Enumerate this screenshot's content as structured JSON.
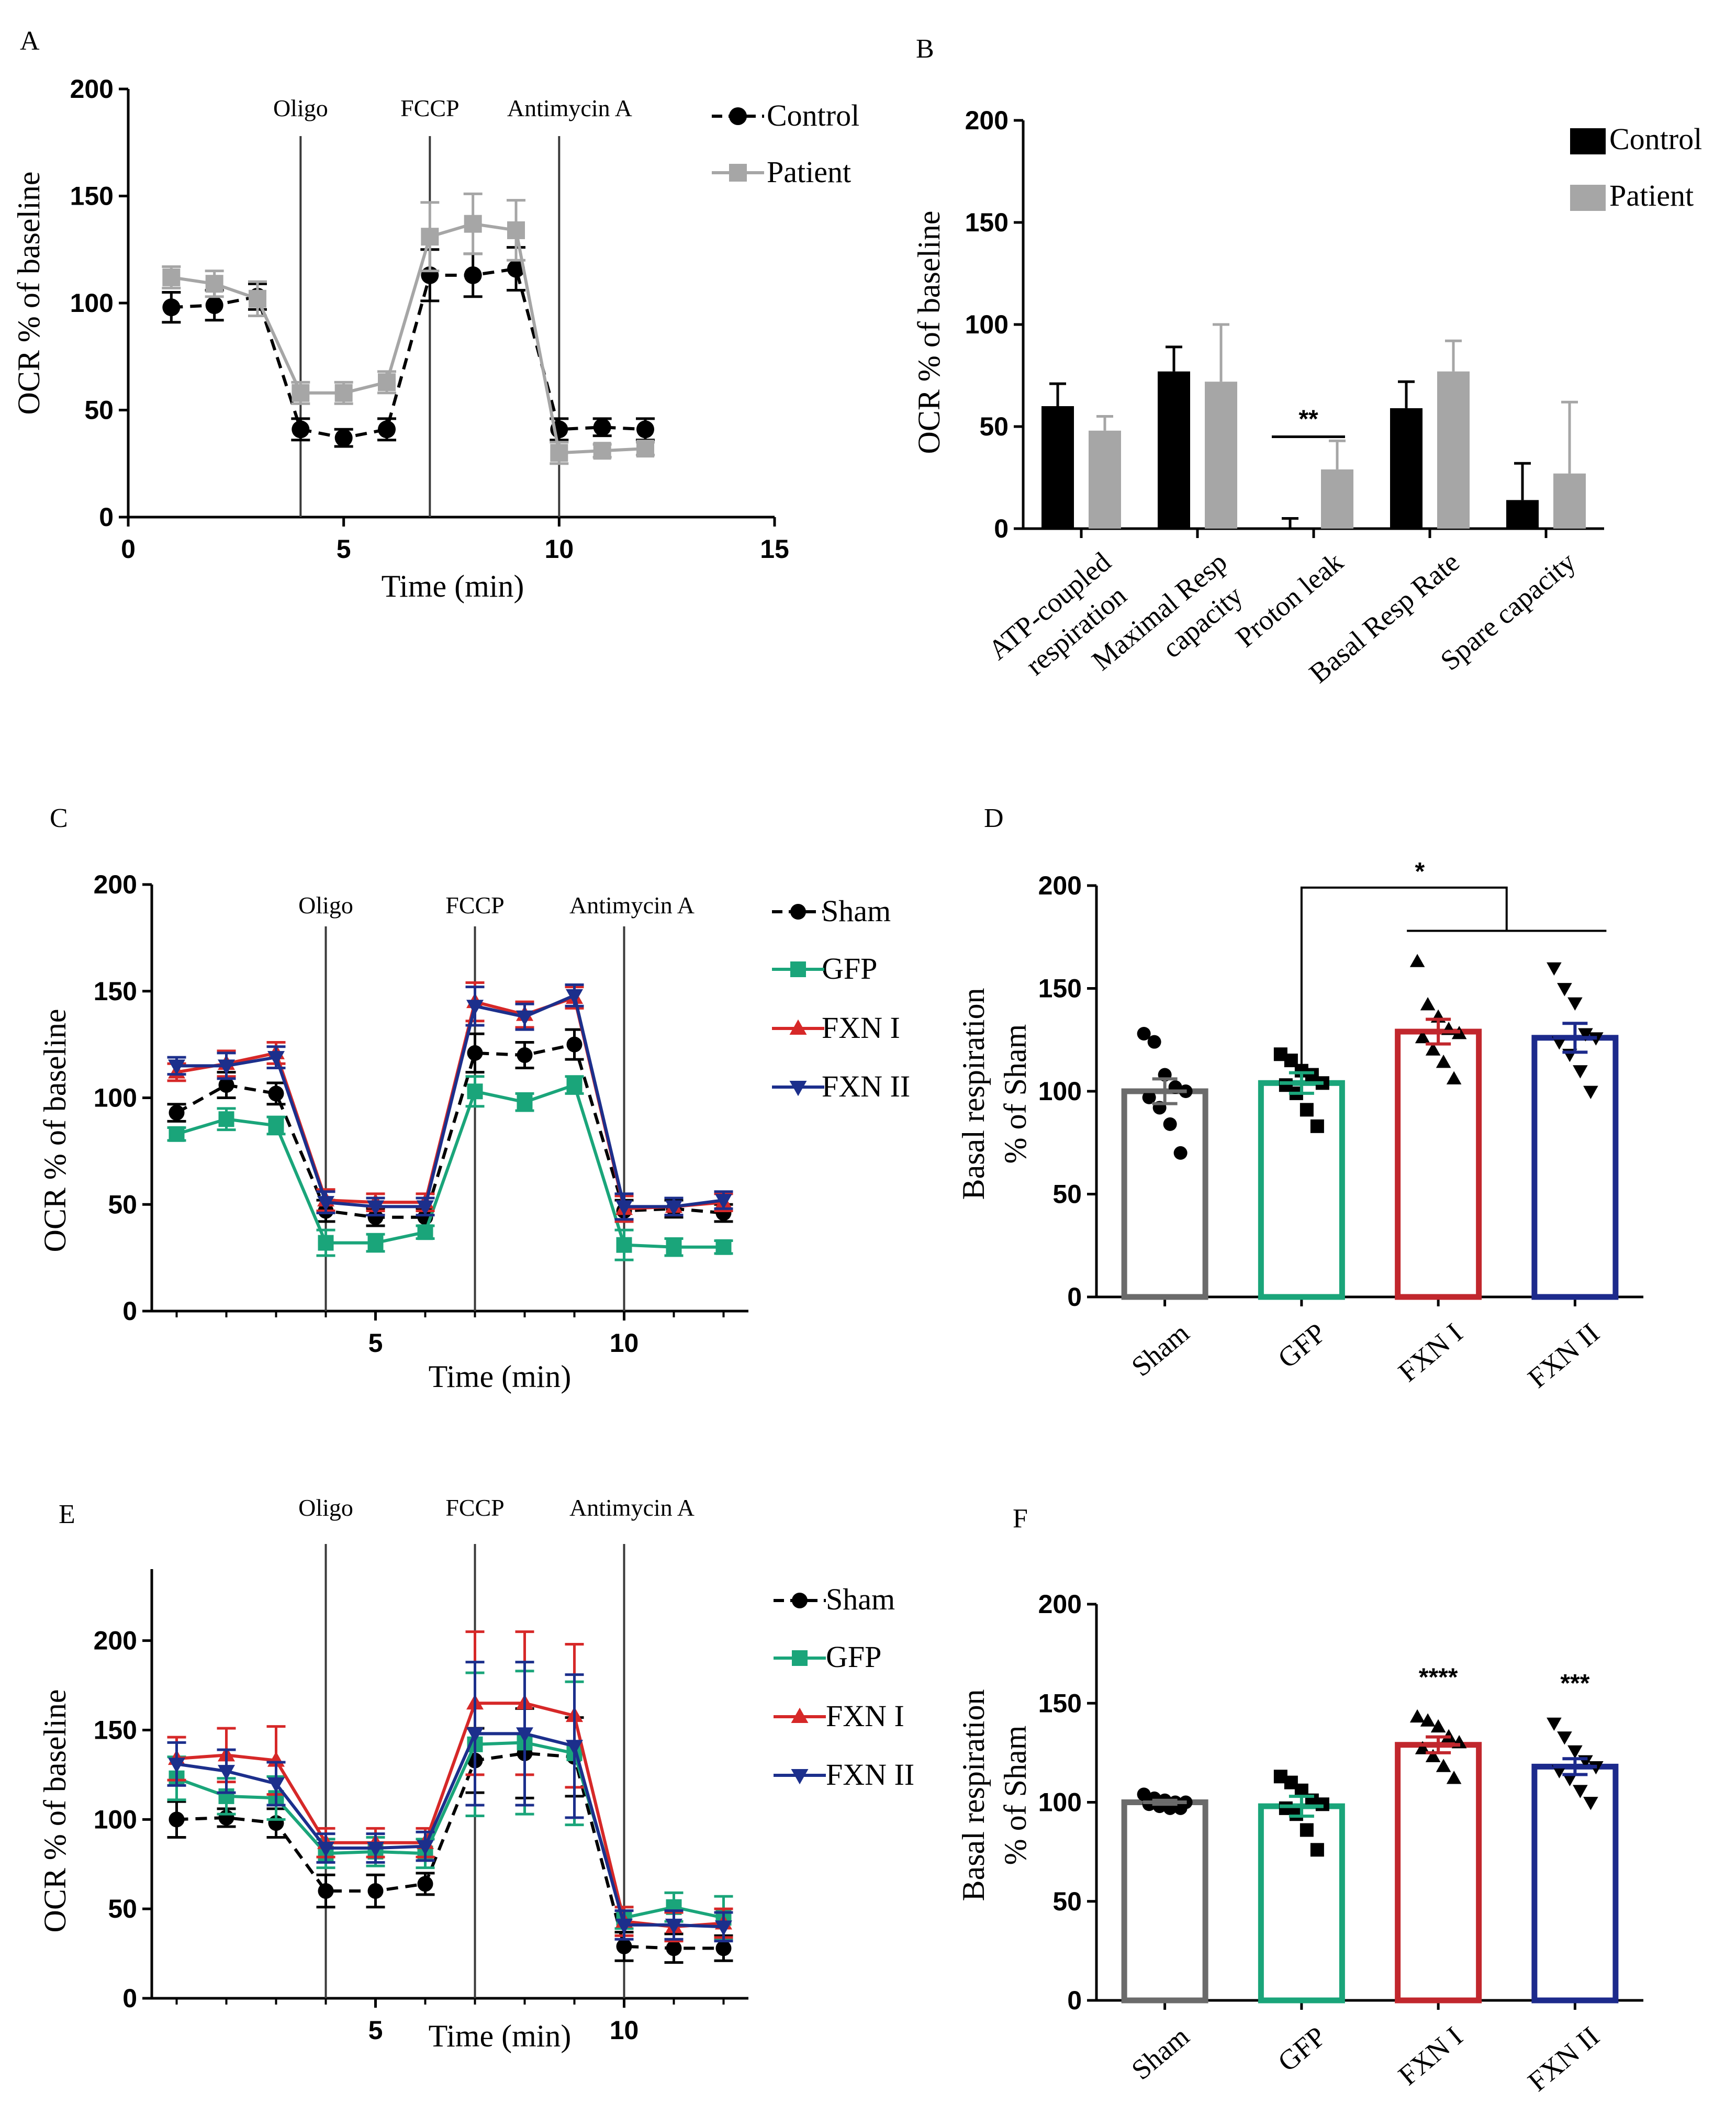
{
  "panel_labels": [
    "A",
    "B",
    "C",
    "D",
    "E",
    "F"
  ],
  "colors": {
    "control": "#000000",
    "patient": "#a6a6a6",
    "sham": "#000000",
    "gfp": "#1aa57a",
    "fxn1": "#d62828",
    "fxn2": "#1c2f8c",
    "bar_sham": "#6b6b6b",
    "bar_gfp": "#1aa57a",
    "bar_fxn1": "#c1272d",
    "bar_fxn2": "#1c2a8c"
  },
  "chart_data": [
    {
      "panel": "A",
      "type": "line",
      "title": "",
      "xlabel": "Time (min)",
      "ylabel": "OCR % of baseline",
      "xlim": [
        0,
        15
      ],
      "ylim": [
        0,
        200
      ],
      "xticks": [
        "0",
        "5",
        "10",
        "15"
      ],
      "yticks": [
        "0",
        "50",
        "100",
        "150",
        "200"
      ],
      "injections": [
        {
          "label": "Oligo",
          "x": 4
        },
        {
          "label": "FCCP",
          "x": 7
        },
        {
          "label": "Antimycin A",
          "x": 10
        }
      ],
      "x": [
        1,
        2,
        3,
        4,
        5,
        6,
        7,
        8,
        9,
        10,
        11,
        12
      ],
      "series": [
        {
          "name": "Control",
          "marker": "circle",
          "dash": true,
          "values": [
            98,
            99,
            103,
            41,
            37,
            41,
            113,
            113,
            116,
            41,
            42,
            41
          ],
          "errors": [
            7,
            7,
            6,
            5,
            4,
            5,
            12,
            10,
            10,
            5,
            4,
            5
          ]
        },
        {
          "name": "Patient",
          "marker": "square",
          "dash": false,
          "values": [
            112,
            109,
            102,
            58,
            58,
            63,
            131,
            137,
            134,
            30,
            31,
            32
          ],
          "errors": [
            5,
            6,
            8,
            5,
            5,
            5,
            16,
            14,
            14,
            5,
            3,
            3
          ]
        }
      ]
    },
    {
      "panel": "B",
      "type": "bar",
      "title": "",
      "xlabel": "",
      "ylabel": "OCR % of baseline",
      "ylim": [
        0,
        200
      ],
      "yticks": [
        "0",
        "50",
        "100",
        "150",
        "200"
      ],
      "categories": [
        "ATP-coupled respiration",
        "Maximal Resp capacity",
        "Proton leak",
        "Basal Resp Rate",
        "Spare capacity"
      ],
      "category_lines": [
        [
          "ATP-coupled",
          "respiration"
        ],
        [
          "Maximal Resp",
          "capacity"
        ],
        [
          "Proton leak"
        ],
        [
          "Basal Resp Rate"
        ],
        [
          "Spare capacity"
        ]
      ],
      "series": [
        {
          "name": "Control",
          "values": [
            60,
            77,
            0,
            59,
            14
          ],
          "errors": [
            11,
            12,
            5,
            13,
            18
          ]
        },
        {
          "name": "Patient",
          "values": [
            48,
            72,
            29,
            77,
            27
          ],
          "errors": [
            7,
            28,
            14,
            15,
            35
          ]
        }
      ],
      "annotations": [
        {
          "text": "**",
          "category": "Proton leak"
        }
      ]
    },
    {
      "panel": "C",
      "type": "line",
      "title": "",
      "xlabel": "Time (min)",
      "ylabel": "OCR % of baseline",
      "xlim": [
        0.5,
        12.5
      ],
      "ylim": [
        0,
        200
      ],
      "xticks": [
        "5",
        "10"
      ],
      "yticks": [
        "0",
        "50",
        "100",
        "150",
        "200"
      ],
      "injections": [
        {
          "label": "Oligo",
          "x": 4
        },
        {
          "label": "FCCP",
          "x": 7
        },
        {
          "label": "Antimycin A",
          "x": 10
        }
      ],
      "x": [
        1,
        2,
        3,
        4,
        5,
        6,
        7,
        8,
        9,
        10,
        11,
        12
      ],
      "series": [
        {
          "name": "Sham",
          "marker": "circle",
          "dash": true,
          "values": [
            93,
            106,
            102,
            47,
            44,
            44,
            121,
            120,
            125,
            47,
            48,
            46
          ],
          "errors": [
            4,
            6,
            5,
            5,
            4,
            4,
            9,
            6,
            7,
            5,
            4,
            4
          ]
        },
        {
          "name": "GFP",
          "marker": "square",
          "dash": false,
          "values": [
            83,
            90,
            87,
            32,
            32,
            37,
            103,
            98,
            106,
            31,
            30,
            30
          ],
          "errors": [
            3,
            5,
            4,
            6,
            4,
            3,
            7,
            4,
            4,
            7,
            4,
            3
          ]
        },
        {
          "name": "FXN I",
          "marker": "triangle-up",
          "dash": false,
          "values": [
            112,
            116,
            121,
            52,
            51,
            51,
            145,
            139,
            147,
            48,
            49,
            51
          ],
          "errors": [
            4,
            6,
            5,
            5,
            4,
            4,
            9,
            6,
            5,
            6,
            4,
            4
          ]
        },
        {
          "name": "FXN II",
          "marker": "triangle-down",
          "dash": false,
          "values": [
            115,
            115,
            119,
            51,
            49,
            49,
            143,
            138,
            148,
            49,
            49,
            52
          ],
          "errors": [
            4,
            6,
            5,
            5,
            4,
            4,
            9,
            6,
            5,
            6,
            4,
            4
          ]
        }
      ]
    },
    {
      "panel": "D",
      "type": "bar",
      "title": "",
      "xlabel": "",
      "ylabel": "Basal respiration % of Sham",
      "ylabel_lines": [
        "Basal respiration",
        "% of Sham"
      ],
      "ylim": [
        0,
        200
      ],
      "yticks": [
        "0",
        "50",
        "100",
        "150",
        "200"
      ],
      "categories": [
        "Sham",
        "GFP",
        "FXN I",
        "FXN II"
      ],
      "values": [
        100,
        104,
        129,
        126
      ],
      "errors": [
        6,
        5,
        6,
        7
      ],
      "points": [
        [
          128,
          124,
          108,
          102,
          100,
          97,
          92,
          84,
          70
        ],
        [
          118,
          115,
          110,
          108,
          104,
          103,
          99,
          91,
          83
        ],
        [
          163,
          142,
          136,
          130,
          128,
          126,
          120,
          114,
          106
        ],
        [
          160,
          150,
          143,
          128,
          126,
          124,
          118,
          110,
          100
        ]
      ],
      "markers": [
        "circle",
        "square",
        "triangle-up",
        "triangle-down"
      ],
      "annotations": [
        {
          "text": "*",
          "from": "GFP",
          "to": [
            "FXN I",
            "FXN II"
          ]
        }
      ]
    },
    {
      "panel": "E",
      "type": "line",
      "title": "",
      "xlabel": "Time (min)",
      "ylabel": "OCR % of baseline",
      "xlim": [
        0.5,
        12.5
      ],
      "ylim": [
        0,
        240
      ],
      "xticks": [
        "5",
        "10"
      ],
      "yticks": [
        "0",
        "50",
        "100",
        "150",
        "200"
      ],
      "injections": [
        {
          "label": "Oligo",
          "x": 4
        },
        {
          "label": "FCCP",
          "x": 7
        },
        {
          "label": "Antimycin A",
          "x": 10
        }
      ],
      "x": [
        1,
        2,
        3,
        4,
        5,
        6,
        7,
        8,
        9,
        10,
        11,
        12
      ],
      "series": [
        {
          "name": "Sham",
          "marker": "circle",
          "dash": true,
          "values": [
            100,
            101,
            98,
            60,
            60,
            64,
            133,
            137,
            135,
            29,
            28,
            28
          ],
          "errors": [
            10,
            5,
            8,
            9,
            9,
            6,
            18,
            25,
            22,
            8,
            8,
            7
          ]
        },
        {
          "name": "GFP",
          "marker": "square",
          "dash": false,
          "values": [
            123,
            113,
            112,
            81,
            82,
            81,
            142,
            143,
            137,
            45,
            51,
            45
          ],
          "errors": [
            12,
            10,
            12,
            8,
            8,
            8,
            40,
            40,
            40,
            6,
            8,
            12
          ]
        },
        {
          "name": "FXN I",
          "marker": "triangle-up",
          "dash": false,
          "values": [
            134,
            136,
            133,
            87,
            87,
            87,
            165,
            165,
            158,
            43,
            40,
            42
          ],
          "errors": [
            12,
            15,
            19,
            8,
            8,
            8,
            40,
            40,
            40,
            8,
            8,
            8
          ]
        },
        {
          "name": "FXN II",
          "marker": "triangle-down",
          "dash": false,
          "values": [
            131,
            127,
            120,
            84,
            84,
            85,
            148,
            148,
            141,
            41,
            41,
            40
          ],
          "errors": [
            12,
            12,
            12,
            8,
            8,
            8,
            40,
            40,
            40,
            8,
            8,
            8
          ]
        }
      ]
    },
    {
      "panel": "F",
      "type": "bar",
      "title": "",
      "xlabel": "",
      "ylabel": "Basal respiration % of Sham",
      "ylabel_lines": [
        "Basal respiration",
        "% of Sham"
      ],
      "ylim": [
        0,
        200
      ],
      "yticks": [
        "0",
        "50",
        "100",
        "150",
        "200"
      ],
      "categories": [
        "Sham",
        "GFP",
        "FXN I",
        "FXN II"
      ],
      "values": [
        100,
        98,
        129,
        118
      ],
      "errors": [
        1,
        5,
        4,
        4
      ],
      "points": [
        [
          104,
          102,
          101,
          100,
          100,
          99,
          98,
          97,
          97
        ],
        [
          113,
          110,
          106,
          101,
          99,
          97,
          94,
          86,
          76
        ],
        [
          143,
          141,
          138,
          133,
          130,
          127,
          123,
          118,
          112
        ],
        [
          140,
          133,
          126,
          121,
          118,
          116,
          112,
          106,
          100
        ]
      ],
      "markers": [
        "circle",
        "square",
        "triangle-up",
        "triangle-down"
      ],
      "annotations": [
        {
          "text": "****",
          "category": "FXN I"
        },
        {
          "text": "***",
          "category": "FXN II"
        }
      ]
    }
  ]
}
